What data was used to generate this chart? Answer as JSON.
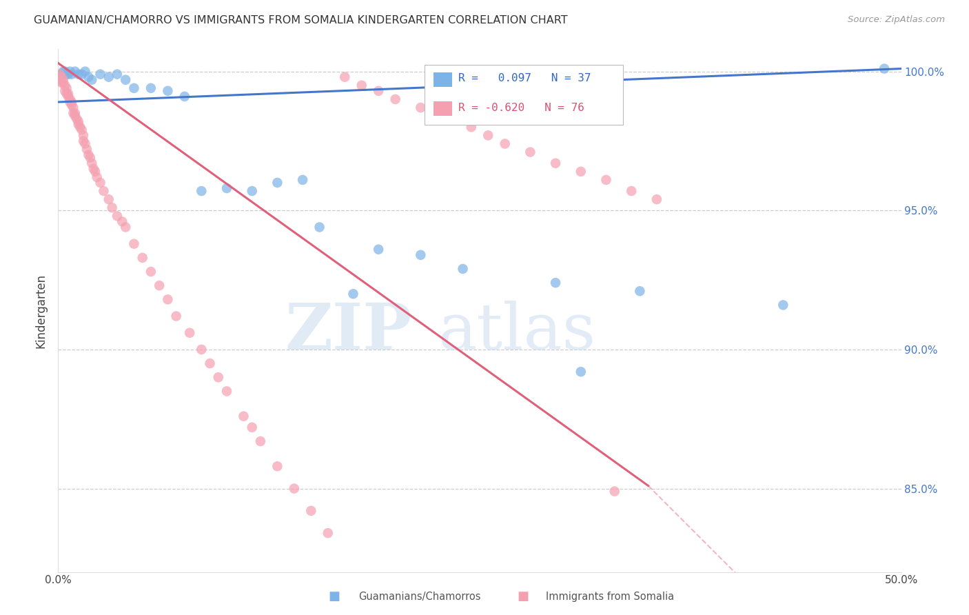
{
  "title": "GUAMANIAN/CHAMORRO VS IMMIGRANTS FROM SOMALIA KINDERGARTEN CORRELATION CHART",
  "source": "Source: ZipAtlas.com",
  "ylabel": "Kindergarten",
  "xlim": [
    0.0,
    0.5
  ],
  "ylim": [
    0.82,
    1.008
  ],
  "yticks": [
    0.85,
    0.9,
    0.95,
    1.0
  ],
  "ytick_labels": [
    "85.0%",
    "90.0%",
    "95.0%",
    "100.0%"
  ],
  "legend_r_blue": " 0.097",
  "legend_n_blue": "37",
  "legend_r_pink": "-0.620",
  "legend_n_pink": "76",
  "legend_label_blue": "Guamanians/Chamorros",
  "legend_label_pink": "Immigrants from Somalia",
  "blue_color": "#7EB3E8",
  "pink_color": "#F4A0B0",
  "blue_line_color": "#4477CC",
  "pink_line_color": "#E0607A",
  "watermark_zip": "ZIP",
  "watermark_atlas": "atlas",
  "blue_x": [
    0.001,
    0.002,
    0.003,
    0.004,
    0.005,
    0.006,
    0.007,
    0.008,
    0.01,
    0.012,
    0.014,
    0.016,
    0.018,
    0.02,
    0.025,
    0.03,
    0.035,
    0.04,
    0.045,
    0.055,
    0.065,
    0.075,
    0.085,
    0.1,
    0.115,
    0.13,
    0.145,
    0.155,
    0.175,
    0.19,
    0.215,
    0.24,
    0.295,
    0.31,
    0.345,
    0.43,
    0.49
  ],
  "blue_y": [
    0.998,
    0.999,
    1.0,
    1.0,
    0.999,
    0.999,
    1.0,
    0.999,
    1.0,
    0.999,
    0.999,
    1.0,
    0.998,
    0.997,
    0.999,
    0.998,
    0.999,
    0.997,
    0.994,
    0.994,
    0.993,
    0.991,
    0.957,
    0.958,
    0.957,
    0.96,
    0.961,
    0.944,
    0.92,
    0.936,
    0.934,
    0.929,
    0.924,
    0.892,
    0.921,
    0.916,
    1.001
  ],
  "pink_x": [
    0.001,
    0.001,
    0.002,
    0.002,
    0.003,
    0.003,
    0.004,
    0.004,
    0.005,
    0.005,
    0.006,
    0.006,
    0.007,
    0.007,
    0.008,
    0.008,
    0.009,
    0.009,
    0.01,
    0.01,
    0.011,
    0.012,
    0.012,
    0.013,
    0.014,
    0.015,
    0.015,
    0.016,
    0.017,
    0.018,
    0.019,
    0.02,
    0.021,
    0.022,
    0.023,
    0.025,
    0.027,
    0.03,
    0.032,
    0.035,
    0.038,
    0.04,
    0.045,
    0.05,
    0.055,
    0.06,
    0.065,
    0.07,
    0.078,
    0.085,
    0.09,
    0.095,
    0.1,
    0.11,
    0.115,
    0.12,
    0.13,
    0.14,
    0.15,
    0.16,
    0.17,
    0.18,
    0.19,
    0.2,
    0.215,
    0.23,
    0.245,
    0.255,
    0.265,
    0.28,
    0.295,
    0.31,
    0.325,
    0.34,
    0.355,
    0.33
  ],
  "pink_y": [
    0.999,
    0.997,
    0.998,
    0.996,
    0.997,
    0.996,
    0.995,
    0.993,
    0.994,
    0.992,
    0.992,
    0.991,
    0.99,
    0.989,
    0.989,
    0.988,
    0.987,
    0.985,
    0.985,
    0.984,
    0.983,
    0.982,
    0.981,
    0.98,
    0.979,
    0.977,
    0.975,
    0.974,
    0.972,
    0.97,
    0.969,
    0.967,
    0.965,
    0.964,
    0.962,
    0.96,
    0.957,
    0.954,
    0.951,
    0.948,
    0.946,
    0.944,
    0.938,
    0.933,
    0.928,
    0.923,
    0.918,
    0.912,
    0.906,
    0.9,
    0.895,
    0.89,
    0.885,
    0.876,
    0.872,
    0.867,
    0.858,
    0.85,
    0.842,
    0.834,
    0.998,
    0.995,
    0.993,
    0.99,
    0.987,
    0.984,
    0.98,
    0.977,
    0.974,
    0.971,
    0.967,
    0.964,
    0.961,
    0.957,
    0.954,
    0.849
  ],
  "blue_trendline": [
    [
      0.0,
      0.5
    ],
    [
      0.989,
      1.001
    ]
  ],
  "pink_trendline_solid": [
    [
      0.0,
      0.35
    ],
    [
      1.003,
      0.851
    ]
  ],
  "pink_trendline_dash": [
    [
      0.35,
      0.5
    ],
    [
      0.851,
      0.76
    ]
  ]
}
